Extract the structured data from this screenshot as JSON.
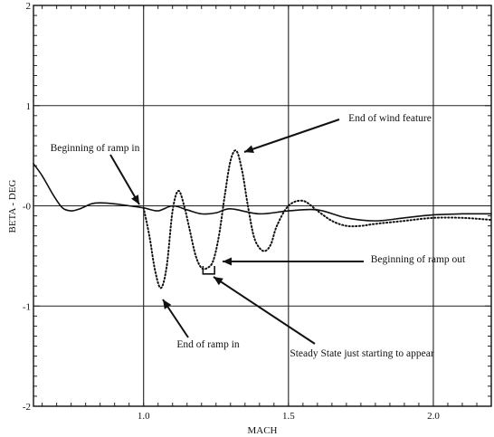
{
  "chart_data": {
    "type": "line",
    "xlabel": "MACH",
    "ylabel": "BETA - DEG",
    "xlim": [
      0.62,
      2.2
    ],
    "ylim": [
      -2,
      2
    ],
    "x_ticks": [
      1.0,
      1.5,
      2.0
    ],
    "x_tick_labels": [
      "1.0",
      "1.5",
      "2.0"
    ],
    "y_ticks": [
      -2,
      -1,
      0,
      1,
      2
    ],
    "y_tick_labels": [
      "-2",
      "-1",
      "-0",
      "1",
      "2"
    ],
    "grid": true,
    "series": [
      {
        "style": "solid",
        "x": [
          0.62,
          0.65,
          0.69,
          0.72,
          0.75,
          0.78,
          0.82,
          0.85,
          0.9,
          0.95,
          1.0,
          1.05,
          1.1,
          1.15,
          1.2,
          1.25,
          1.3,
          1.4,
          1.5,
          1.6,
          1.7,
          1.8,
          1.9,
          2.0,
          2.1,
          2.2
        ],
        "y": [
          0.42,
          0.3,
          0.1,
          -0.02,
          -0.05,
          -0.03,
          0.02,
          0.03,
          0.02,
          0.0,
          -0.02,
          -0.05,
          0.0,
          -0.04,
          -0.08,
          -0.07,
          -0.03,
          -0.08,
          -0.05,
          -0.04,
          -0.12,
          -0.15,
          -0.12,
          -0.09,
          -0.08,
          -0.08
        ]
      },
      {
        "style": "dotted",
        "x": [
          1.0,
          1.02,
          1.04,
          1.06,
          1.08,
          1.1,
          1.12,
          1.14,
          1.16,
          1.18,
          1.2,
          1.22,
          1.24,
          1.26,
          1.28,
          1.3,
          1.32,
          1.34,
          1.36,
          1.38,
          1.4,
          1.42,
          1.44,
          1.46,
          1.5,
          1.55,
          1.6,
          1.65,
          1.7,
          1.75,
          1.8,
          1.9,
          2.0,
          2.1,
          2.2
        ],
        "y": [
          -0.02,
          -0.3,
          -0.65,
          -0.82,
          -0.6,
          -0.05,
          0.15,
          0.0,
          -0.25,
          -0.5,
          -0.62,
          -0.62,
          -0.55,
          -0.3,
          0.1,
          0.45,
          0.55,
          0.35,
          0.0,
          -0.3,
          -0.42,
          -0.45,
          -0.38,
          -0.2,
          0.0,
          0.05,
          -0.05,
          -0.15,
          -0.2,
          -0.2,
          -0.18,
          -0.15,
          -0.12,
          -0.12,
          -0.14
        ]
      }
    ],
    "annotations": [
      {
        "text": "End of wind feature",
        "x": 1.78,
        "y": 1.0
      },
      {
        "text": "Beginning of ramp in",
        "x": 0.74,
        "y": 0.6
      },
      {
        "text": "Beginning of ramp out",
        "x": 1.78,
        "y": -0.5
      },
      {
        "text": "End of ramp in",
        "x": 1.1,
        "y": -1.4
      },
      {
        "text": "Steady State just starting to appear",
        "x": 1.6,
        "y": -1.45
      }
    ]
  }
}
